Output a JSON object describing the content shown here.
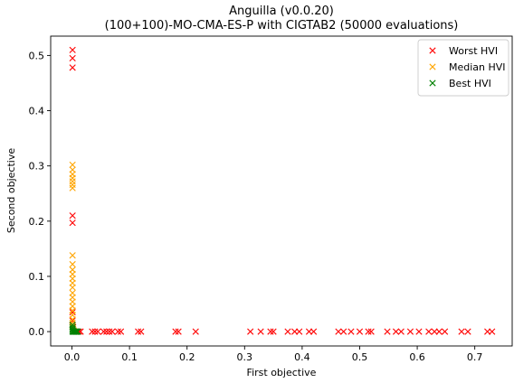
{
  "chart_data": {
    "type": "scatter",
    "title": "Anguilla (v0.0.20)",
    "subtitle": "(100+100)-MO-CMA-ES-P with CIGTAB2 (50000 evaluations)",
    "xlabel": "First objective",
    "ylabel": "Second objective",
    "xlim": [
      -0.037,
      0.765
    ],
    "ylim": [
      -0.026,
      0.535
    ],
    "xticks": [
      0.0,
      0.1,
      0.2,
      0.3,
      0.4,
      0.5,
      0.6,
      0.7
    ],
    "xtick_labels": [
      "0.0",
      "0.1",
      "0.2",
      "0.3",
      "0.4",
      "0.5",
      "0.6",
      "0.7"
    ],
    "yticks": [
      0.0,
      0.1,
      0.2,
      0.3,
      0.4,
      0.5
    ],
    "ytick_labels": [
      "0.0",
      "0.1",
      "0.2",
      "0.3",
      "0.4",
      "0.5"
    ],
    "grid": false,
    "legend_position": "top-right",
    "marker": "x",
    "series": [
      {
        "name": "Worst HVI",
        "color": "#ff0000",
        "points": [
          [
            0.001,
            0.51
          ],
          [
            0.001,
            0.495
          ],
          [
            0.001,
            0.478
          ],
          [
            0.001,
            0.21
          ],
          [
            0.001,
            0.197
          ],
          [
            0.001,
            0.035
          ],
          [
            0.001,
            0.02
          ],
          [
            0.002,
            0.008
          ],
          [
            0.008,
            0.0
          ],
          [
            0.012,
            0.0
          ],
          [
            0.015,
            0.0
          ],
          [
            0.035,
            0.0
          ],
          [
            0.04,
            0.0
          ],
          [
            0.045,
            0.0
          ],
          [
            0.055,
            0.0
          ],
          [
            0.06,
            0.0
          ],
          [
            0.065,
            0.0
          ],
          [
            0.07,
            0.0
          ],
          [
            0.08,
            0.0
          ],
          [
            0.085,
            0.0
          ],
          [
            0.115,
            0.0
          ],
          [
            0.12,
            0.0
          ],
          [
            0.18,
            0.0
          ],
          [
            0.185,
            0.0
          ],
          [
            0.215,
            0.0
          ],
          [
            0.31,
            0.0
          ],
          [
            0.328,
            0.0
          ],
          [
            0.345,
            0.0
          ],
          [
            0.35,
            0.0
          ],
          [
            0.375,
            0.0
          ],
          [
            0.387,
            0.0
          ],
          [
            0.395,
            0.0
          ],
          [
            0.412,
            0.0
          ],
          [
            0.42,
            0.0
          ],
          [
            0.463,
            0.0
          ],
          [
            0.472,
            0.0
          ],
          [
            0.485,
            0.0
          ],
          [
            0.5,
            0.0
          ],
          [
            0.515,
            0.0
          ],
          [
            0.52,
            0.0
          ],
          [
            0.548,
            0.0
          ],
          [
            0.563,
            0.0
          ],
          [
            0.572,
            0.0
          ],
          [
            0.588,
            0.0
          ],
          [
            0.603,
            0.0
          ],
          [
            0.62,
            0.0
          ],
          [
            0.63,
            0.0
          ],
          [
            0.638,
            0.0
          ],
          [
            0.648,
            0.0
          ],
          [
            0.677,
            0.0
          ],
          [
            0.688,
            0.0
          ],
          [
            0.722,
            0.0
          ],
          [
            0.73,
            0.0
          ]
        ]
      },
      {
        "name": "Median HVI",
        "color": "#ffa500",
        "points": [
          [
            0.001,
            0.302
          ],
          [
            0.001,
            0.293
          ],
          [
            0.001,
            0.285
          ],
          [
            0.001,
            0.278
          ],
          [
            0.001,
            0.272
          ],
          [
            0.001,
            0.266
          ],
          [
            0.001,
            0.26
          ],
          [
            0.001,
            0.138
          ],
          [
            0.001,
            0.122
          ],
          [
            0.001,
            0.112
          ],
          [
            0.001,
            0.104
          ],
          [
            0.001,
            0.096
          ],
          [
            0.001,
            0.088
          ],
          [
            0.001,
            0.08
          ],
          [
            0.001,
            0.07
          ],
          [
            0.001,
            0.062
          ],
          [
            0.001,
            0.054
          ],
          [
            0.001,
            0.046
          ],
          [
            0.001,
            0.038
          ],
          [
            0.001,
            0.03
          ],
          [
            0.001,
            0.022
          ],
          [
            0.001,
            0.016
          ],
          [
            0.001,
            0.01
          ],
          [
            0.002,
            0.005
          ],
          [
            0.003,
            0.002
          ]
        ]
      },
      {
        "name": "Best HVI",
        "color": "#008000",
        "points": [
          [
            0.001,
            0.012
          ],
          [
            0.001,
            0.008
          ],
          [
            0.001,
            0.005
          ],
          [
            0.001,
            0.003
          ],
          [
            0.002,
            0.001
          ],
          [
            0.003,
            0.0
          ],
          [
            0.004,
            0.0
          ],
          [
            0.005,
            0.0
          ],
          [
            0.006,
            0.0
          ],
          [
            0.007,
            0.0
          ],
          [
            0.008,
            0.0
          ],
          [
            0.009,
            0.0
          ],
          [
            0.01,
            0.0
          ],
          [
            0.002,
            0.0
          ],
          [
            0.001,
            0.0
          ]
        ]
      }
    ]
  }
}
